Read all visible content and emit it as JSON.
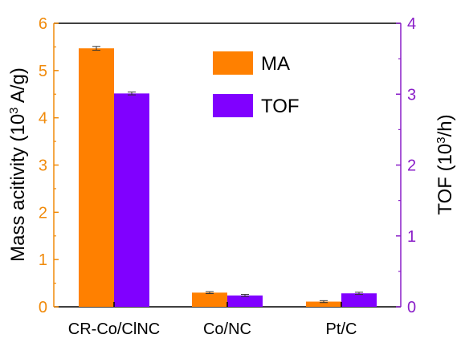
{
  "chart_data": {
    "type": "bar",
    "categories": [
      "CR-Co/ClNC",
      "Co/NC",
      "Pt/C"
    ],
    "series": [
      {
        "name": "MA",
        "axis": "left",
        "color": "#FF8000",
        "values": [
          5.47,
          0.3,
          0.11
        ],
        "errors": [
          0.04,
          0.02,
          0.02
        ]
      },
      {
        "name": "TOF",
        "axis": "right",
        "color": "#8000FF",
        "values": [
          3.01,
          0.16,
          0.19
        ],
        "errors": [
          0.02,
          0.015,
          0.015
        ]
      }
    ],
    "ylabel_left": {
      "prefix": "Mass acitivity (10",
      "sup": "3",
      "suffix": " A/g)"
    },
    "ylabel_right": {
      "prefix": "TOF (10",
      "sup": "3",
      "suffix": "/h)"
    },
    "ylim_left": [
      0,
      6
    ],
    "ylim_right": [
      0,
      4
    ],
    "yticks_left": [
      "0",
      "1",
      "2",
      "3",
      "4",
      "5",
      "6"
    ],
    "yticks_right": [
      "0",
      "1",
      "2",
      "3",
      "4"
    ],
    "left_axis_color": "#F08A0A",
    "right_axis_color": "#8A1EC8",
    "legend_position": "top-center",
    "grid": false
  }
}
